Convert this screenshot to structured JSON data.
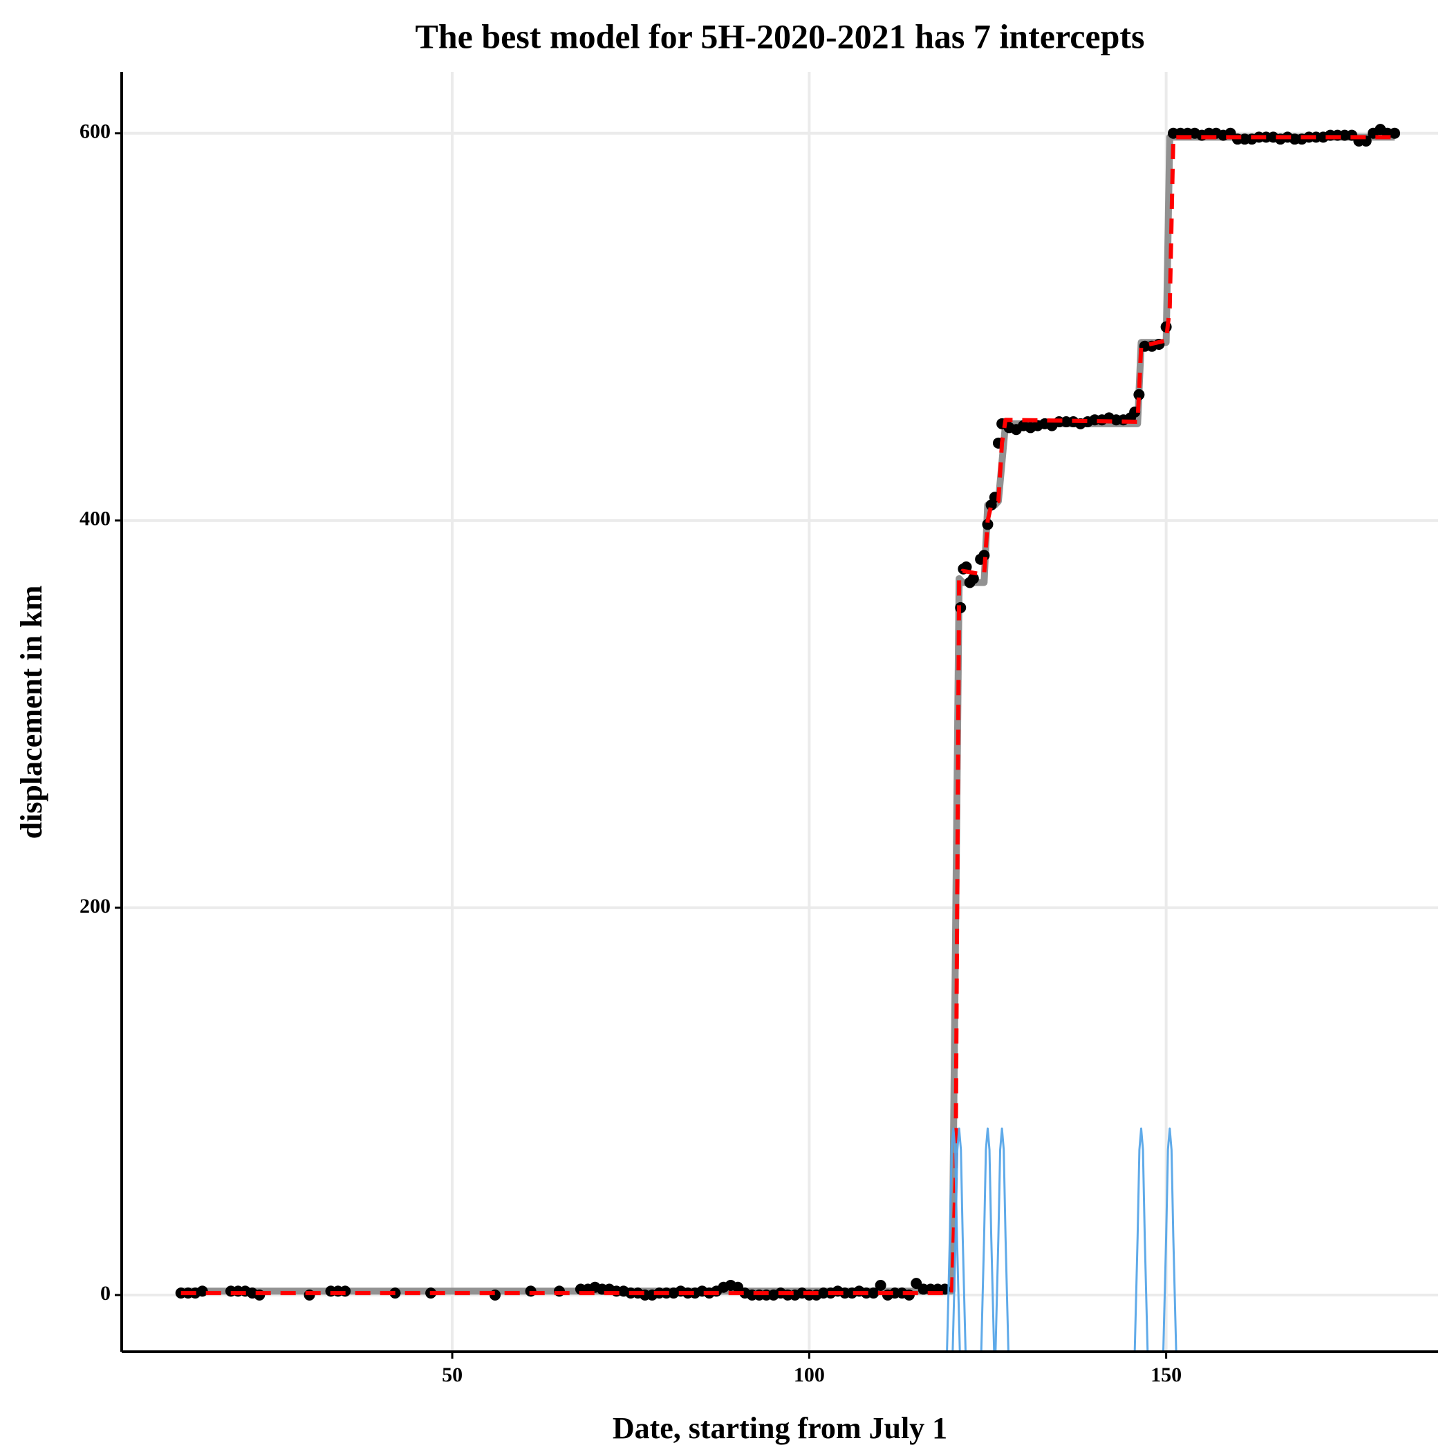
{
  "chart_data": {
    "type": "mixed",
    "title": "The best model for 5H-2020-2021 has 7 intercepts",
    "x_label": "Date, starting from July 1",
    "y_label": "displacement in km",
    "xlim": [
      3.7,
      188.1
    ],
    "ylim": [
      -29.3,
      631.7
    ],
    "xticks": [
      50,
      100,
      150
    ],
    "yticks": [
      0,
      200,
      400,
      600
    ],
    "grid": true,
    "series": [
      {
        "type": "line",
        "color": "#8c8c8c",
        "dash": false,
        "width": 10,
        "x": [
          12,
          120,
          121,
          121.5,
          124.5,
          125,
          126,
          126.5,
          127.5,
          146,
          146.5,
          150,
          150.5,
          182
        ],
        "values": [
          2,
          2,
          370,
          368,
          368,
          408,
          408,
          410,
          450,
          450,
          492,
          492,
          598,
          598
        ]
      },
      {
        "type": "scatter",
        "color": "#000000",
        "x": [
          12,
          13,
          14,
          15,
          19,
          20,
          21,
          22,
          23,
          30,
          33,
          34,
          35,
          42,
          47,
          56,
          61,
          65,
          68,
          69,
          70,
          71,
          72,
          73,
          74,
          75,
          76,
          77,
          78,
          79,
          80,
          81,
          82,
          83,
          84,
          85,
          86,
          87,
          88,
          89,
          90,
          91,
          92,
          93,
          94,
          95,
          96,
          97,
          98,
          99,
          100,
          101,
          102,
          103,
          104,
          105,
          106,
          107,
          108,
          109,
          110,
          111,
          112,
          113,
          114,
          115,
          116,
          117,
          118,
          119,
          121.2,
          121.6,
          122,
          122.5,
          123,
          124,
          124.5,
          125,
          125.5,
          126,
          126.5,
          127,
          127.5,
          128,
          129,
          130,
          131,
          132,
          133,
          134,
          135,
          136,
          137,
          138,
          139,
          140,
          141,
          142,
          143,
          144,
          145,
          145.6,
          146.2,
          147,
          148,
          149,
          150,
          151,
          152,
          153,
          154,
          155,
          156,
          157,
          158,
          159,
          160,
          161,
          162,
          163,
          164,
          165,
          166,
          167,
          168,
          169,
          170,
          171,
          172,
          173,
          174,
          175,
          176,
          177,
          178,
          179,
          180,
          181,
          182
        ],
        "values": [
          1,
          1,
          1,
          2,
          2,
          2,
          2,
          1,
          0,
          0,
          2,
          2,
          2,
          1,
          1,
          0,
          2,
          2,
          3,
          3,
          4,
          3,
          3,
          2,
          2,
          1,
          1,
          0,
          0,
          1,
          1,
          1,
          2,
          1,
          1,
          2,
          1,
          2,
          4,
          5,
          4,
          1,
          0,
          0,
          0,
          0,
          1,
          0,
          0,
          1,
          0,
          0,
          1,
          1,
          2,
          1,
          1,
          2,
          1,
          1,
          5,
          0,
          1,
          1,
          0,
          6,
          3,
          3,
          3,
          3,
          355,
          375,
          376,
          368,
          370,
          380,
          382,
          398,
          408,
          412,
          440,
          450,
          450,
          448,
          447,
          449,
          448,
          449,
          450,
          449,
          451,
          451,
          451,
          450,
          451,
          452,
          452,
          453,
          452,
          452,
          453,
          456,
          465,
          490,
          490,
          491,
          500,
          600,
          600,
          600,
          600,
          599,
          600,
          600,
          599,
          600,
          597,
          597,
          597,
          598,
          598,
          598,
          597,
          598,
          597,
          597,
          598,
          598,
          598,
          599,
          599,
          599,
          599,
          596,
          596,
          600,
          602,
          600,
          600
        ]
      },
      {
        "type": "line",
        "color": "#ff0000",
        "dash": true,
        "width": 6,
        "x": [
          12,
          120,
          120.5,
          121,
          121.5,
          124.5,
          125,
          125.5,
          126.5,
          127,
          127.5,
          146,
          146.5,
          150,
          150.5,
          151,
          182
        ],
        "values": [
          1,
          1,
          60,
          370,
          374,
          372,
          400,
          408,
          410,
          440,
          452,
          451,
          490,
          493,
          510,
          598,
          598
        ]
      },
      {
        "type": "line",
        "color": "#56a5e8",
        "dash": false,
        "width": 3,
        "x": [
          119.3,
          119.7,
          119.95,
          120.2,
          120.45,
          120.7,
          121.1,
          null,
          120.1,
          120.5,
          120.75,
          121,
          121.25,
          121.5,
          121.9,
          null,
          124.1,
          124.5,
          124.75,
          125,
          125.25,
          125.5,
          125.9,
          null,
          126.1,
          126.5,
          126.75,
          127,
          127.25,
          127.5,
          127.9,
          null,
          145.6,
          146,
          146.25,
          146.5,
          146.75,
          147,
          147.4,
          null,
          149.6,
          150,
          150.25,
          150.5,
          150.75,
          151,
          151.4
        ],
        "values": [
          -29,
          30,
          75,
          86,
          75,
          30,
          -29,
          null,
          -29,
          30,
          75,
          86,
          75,
          30,
          -29,
          null,
          -29,
          30,
          75,
          86,
          75,
          30,
          -29,
          null,
          -29,
          30,
          75,
          86,
          75,
          30,
          -29,
          null,
          -29,
          30,
          75,
          86,
          75,
          30,
          -29,
          null,
          -29,
          30,
          75,
          86,
          75,
          30,
          -29
        ]
      }
    ]
  }
}
